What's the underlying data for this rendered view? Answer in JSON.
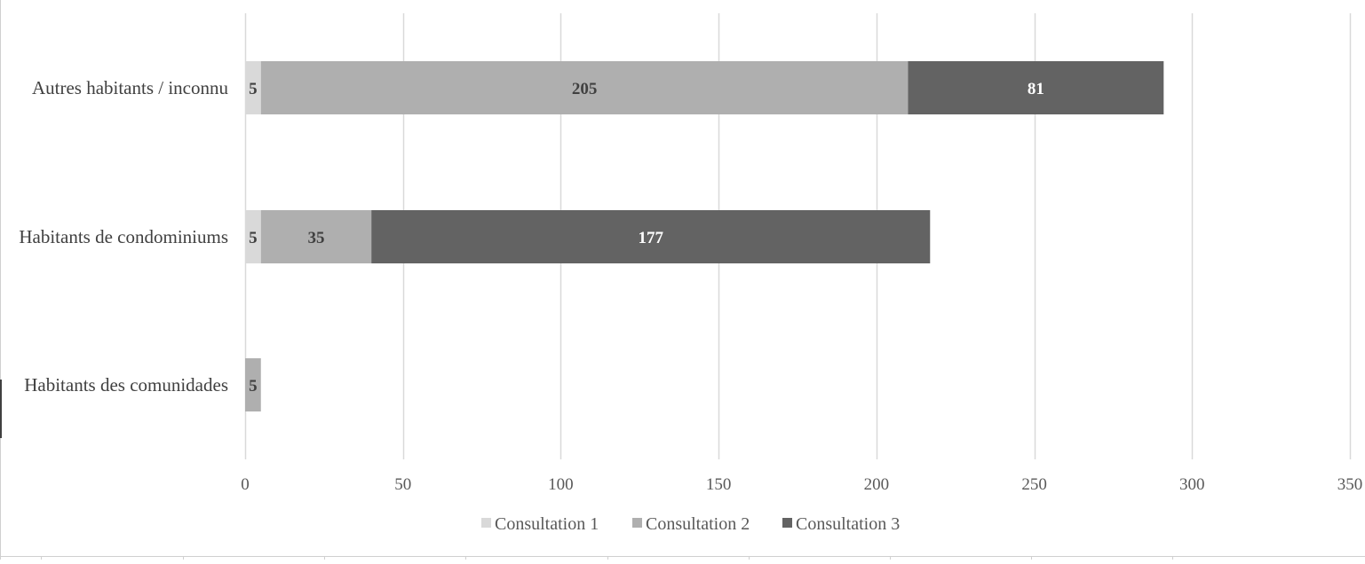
{
  "chart_data": {
    "type": "bar",
    "orientation": "horizontal",
    "stacked": true,
    "categories": [
      "Autres habitants / inconnu",
      "Habitants de condominiums",
      "Habitants des comunidades"
    ],
    "series": [
      {
        "name": "Consultation 1",
        "color": "#d9d9d9",
        "label_color": "#404040",
        "values": [
          5,
          5,
          null
        ]
      },
      {
        "name": "Consultation 2",
        "color": "#afafaf",
        "label_color": "#404040",
        "values": [
          205,
          35,
          5
        ]
      },
      {
        "name": "Consultation 3",
        "color": "#636363",
        "label_color": "#ffffff",
        "values": [
          81,
          177,
          null
        ]
      }
    ],
    "xlim": [
      0,
      350
    ],
    "xticks": [
      "0",
      "50",
      "100",
      "150",
      "200",
      "250",
      "300",
      "350"
    ],
    "grid": true,
    "legend": "bottom"
  }
}
